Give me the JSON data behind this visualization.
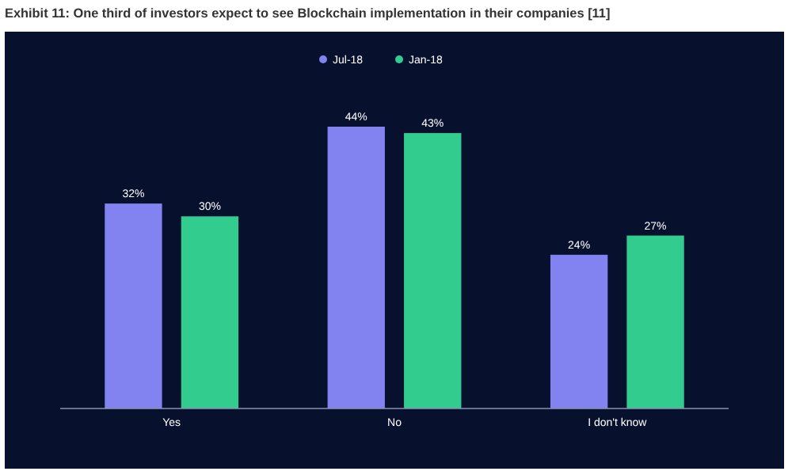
{
  "chart_data": {
    "type": "bar",
    "title": "Exhibit 11: One third of investors expect to see Blockchain implementation in their companies [11]",
    "categories": [
      "Yes",
      "No",
      "I don't know"
    ],
    "series": [
      {
        "name": "Jul-18",
        "color": "#8282f0",
        "values": [
          32,
          44,
          24
        ],
        "value_labels": [
          "32%",
          "44%",
          "24%"
        ]
      },
      {
        "name": "Jan-18",
        "color": "#33cc8f",
        "values": [
          30,
          43,
          27
        ],
        "value_labels": [
          "30%",
          "43%",
          "27%"
        ]
      }
    ],
    "legend": "top",
    "grid": false
  }
}
